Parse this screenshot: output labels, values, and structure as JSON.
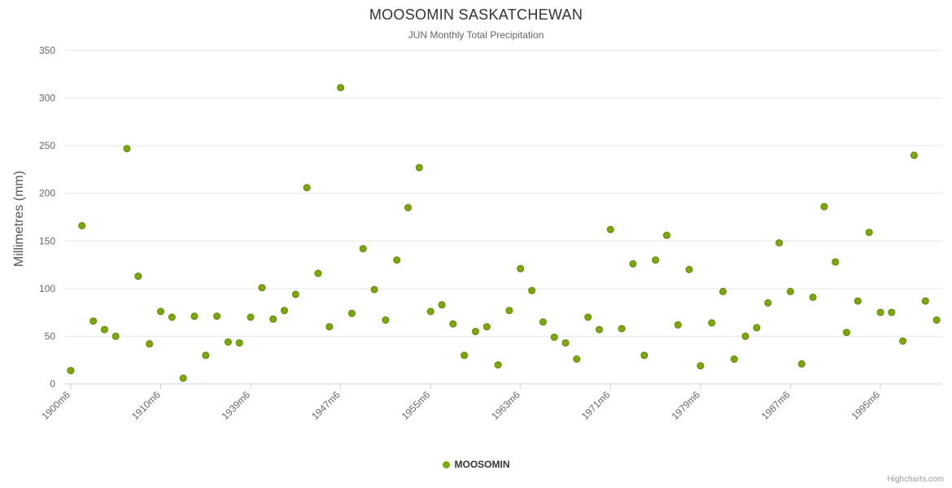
{
  "title": "MOOSOMIN SASKATCHEWAN",
  "subtitle": "JUN Monthly Total Precipitation",
  "legend": {
    "label": "MOOSOMIN"
  },
  "credits": "Highcharts.com",
  "colors": {
    "point": "#7ca908",
    "point_stroke": "#5f8406",
    "grid": "#e6e6e6",
    "axis_line": "#ccd6eb",
    "tick": "#cccccc",
    "tick_label": "#666666",
    "y_label": "#666666"
  },
  "chart_data": {
    "type": "scatter",
    "title": "MOOSOMIN SASKATCHEWAN",
    "subtitle": "JUN Monthly Total Precipitation",
    "ylabel": "Millimetres (mm)",
    "ylim": [
      0,
      350
    ],
    "y_ticks": [
      0,
      50,
      100,
      150,
      200,
      250,
      300,
      350
    ],
    "x_tick_labels": [
      "1900m6",
      "1910m6",
      "1939m6",
      "1947m6",
      "1955m6",
      "1963m6",
      "1971m6",
      "1979m6",
      "1987m6",
      "1995m6"
    ],
    "x_tick_indices": [
      0,
      8,
      16,
      24,
      32,
      40,
      48,
      56,
      64,
      72
    ],
    "grid": true,
    "legend_position": "bottom",
    "series": [
      {
        "name": "MOOSOMIN",
        "color": "#7ca908",
        "values": [
          14,
          166,
          66,
          57,
          50,
          247,
          113,
          42,
          76,
          70,
          6,
          71,
          30,
          71,
          44,
          43,
          70,
          101,
          68,
          77,
          94,
          206,
          116,
          60,
          311,
          74,
          142,
          99,
          67,
          130,
          185,
          227,
          76,
          83,
          63,
          30,
          55,
          60,
          20,
          77,
          121,
          98,
          65,
          49,
          43,
          26,
          70,
          57,
          162,
          58,
          126,
          30,
          130,
          156,
          62,
          120,
          19,
          64,
          97,
          26,
          50,
          59,
          85,
          148,
          97,
          21,
          91,
          186,
          128,
          54,
          87,
          159,
          75,
          75,
          45,
          240,
          87,
          67
        ]
      }
    ]
  }
}
